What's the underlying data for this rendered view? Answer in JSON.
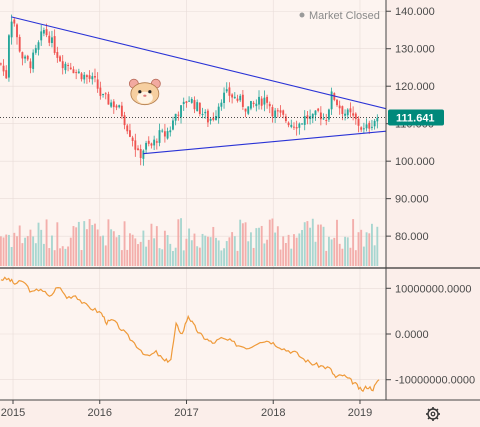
{
  "status": {
    "text": "Market Closed",
    "dot_color": "#9a9a9a"
  },
  "colors": {
    "up": "#26a69a",
    "down": "#ef5350",
    "trendline": "#2a33d6",
    "indicator": "#ef9a3a",
    "price_label_bg": "#00897b",
    "grid": "#e8dcd8"
  },
  "icons": {
    "mascot": "hamster-emoji",
    "settings": "gear-icon"
  },
  "chart_data": [
    {
      "type": "candlestick",
      "title": "",
      "x_ticks": [
        "2015",
        "2016",
        "2017",
        "2018",
        "2019"
      ],
      "x_tick_values": [
        2015.0,
        2016.0,
        2017.0,
        2018.0,
        2019.0
      ],
      "xlim": [
        2014.85,
        2019.3
      ],
      "y_ticks": [
        "140.000",
        "130.000",
        "120.000",
        "110.000",
        "100.000",
        "90.000",
        "80.000"
      ],
      "y_tick_values": [
        140,
        130,
        120,
        110,
        100,
        90,
        80
      ],
      "ylim": [
        71.5,
        143
      ],
      "last_price": 111.641,
      "last_price_label": "111.641",
      "series_close": [
        [
          2014.86,
          126
        ],
        [
          2014.92,
          122
        ],
        [
          2014.96,
          137
        ],
        [
          2015.0,
          139
        ],
        [
          2015.05,
          132
        ],
        [
          2015.12,
          127
        ],
        [
          2015.2,
          126
        ],
        [
          2015.28,
          130
        ],
        [
          2015.35,
          135
        ],
        [
          2015.42,
          133
        ],
        [
          2015.5,
          129
        ],
        [
          2015.58,
          126
        ],
        [
          2015.65,
          126
        ],
        [
          2015.72,
          124
        ],
        [
          2015.8,
          123
        ],
        [
          2015.88,
          122
        ],
        [
          2015.95,
          121
        ],
        [
          2016.02,
          117
        ],
        [
          2016.1,
          116
        ],
        [
          2016.18,
          115
        ],
        [
          2016.25,
          113
        ],
        [
          2016.32,
          109
        ],
        [
          2016.38,
          106
        ],
        [
          2016.45,
          101
        ],
        [
          2016.52,
          104
        ],
        [
          2016.6,
          104
        ],
        [
          2016.68,
          107
        ],
        [
          2016.75,
          107
        ],
        [
          2016.82,
          109
        ],
        [
          2016.88,
          113
        ],
        [
          2016.95,
          114
        ],
        [
          2017.02,
          117
        ],
        [
          2017.1,
          115
        ],
        [
          2017.18,
          113
        ],
        [
          2017.25,
          111
        ],
        [
          2017.32,
          112
        ],
        [
          2017.4,
          117
        ],
        [
          2017.48,
          118
        ],
        [
          2017.55,
          117
        ],
        [
          2017.62,
          116
        ],
        [
          2017.7,
          114
        ],
        [
          2017.78,
          115
        ],
        [
          2017.85,
          116
        ],
        [
          2017.92,
          117
        ],
        [
          2018.0,
          113
        ],
        [
          2018.08,
          112
        ],
        [
          2018.15,
          111
        ],
        [
          2018.22,
          110
        ],
        [
          2018.3,
          110
        ],
        [
          2018.38,
          112
        ],
        [
          2018.45,
          111
        ],
        [
          2018.52,
          113
        ],
        [
          2018.6,
          111
        ],
        [
          2018.68,
          118
        ],
        [
          2018.75,
          115
        ],
        [
          2018.82,
          113
        ],
        [
          2018.9,
          112
        ],
        [
          2018.98,
          110
        ],
        [
          2019.05,
          108
        ],
        [
          2019.12,
          110
        ],
        [
          2019.2,
          111.6
        ]
      ],
      "volume_max": 100,
      "trendlines": [
        {
          "name": "upper",
          "from": [
            2014.98,
            138.5
          ],
          "to": [
            2019.3,
            114
          ]
        },
        {
          "name": "lower",
          "from": [
            2016.5,
            102
          ],
          "to": [
            2019.3,
            108
          ]
        }
      ],
      "price_marker": "hamster-emoji",
      "price_marker_at": [
        2016.52,
        118
      ],
      "dotted_line_at": 111.641
    },
    {
      "type": "line",
      "title": "",
      "y_ticks": [
        "10000000.0000",
        "0.0000",
        "-10000000.0000"
      ],
      "y_tick_values": [
        10000000,
        0,
        -10000000
      ],
      "ylim": [
        -14000000,
        14000000
      ],
      "values": [
        [
          2014.86,
          12000000
        ],
        [
          2014.95,
          12000000
        ],
        [
          2015.02,
          11000000
        ],
        [
          2015.12,
          11500000
        ],
        [
          2015.22,
          9000000
        ],
        [
          2015.32,
          10000000
        ],
        [
          2015.42,
          8000000
        ],
        [
          2015.52,
          10500000
        ],
        [
          2015.62,
          8000000
        ],
        [
          2015.72,
          8500000
        ],
        [
          2015.82,
          6500000
        ],
        [
          2015.92,
          5500000
        ],
        [
          2016.02,
          4500000
        ],
        [
          2016.08,
          2500000
        ],
        [
          2016.15,
          3000000
        ],
        [
          2016.25,
          1000000
        ],
        [
          2016.35,
          -1000000
        ],
        [
          2016.45,
          -3000000
        ],
        [
          2016.55,
          -5000000
        ],
        [
          2016.65,
          -4000000
        ],
        [
          2016.75,
          -6000000
        ],
        [
          2016.82,
          -5500000
        ],
        [
          2016.88,
          2000000
        ],
        [
          2016.95,
          0
        ],
        [
          2017.02,
          4000000
        ],
        [
          2017.08,
          2000000
        ],
        [
          2017.15,
          0
        ],
        [
          2017.22,
          -1000000
        ],
        [
          2017.3,
          -2000000
        ],
        [
          2017.4,
          -1000000
        ],
        [
          2017.5,
          -1500000
        ],
        [
          2017.6,
          -2500000
        ],
        [
          2017.72,
          -3000000
        ],
        [
          2017.85,
          -1500000
        ],
        [
          2017.95,
          -1500000
        ],
        [
          2018.05,
          -2500000
        ],
        [
          2018.15,
          -3500000
        ],
        [
          2018.25,
          -4000000
        ],
        [
          2018.35,
          -5500000
        ],
        [
          2018.45,
          -6500000
        ],
        [
          2018.55,
          -7000000
        ],
        [
          2018.65,
          -7500000
        ],
        [
          2018.72,
          -9500000
        ],
        [
          2018.8,
          -9000000
        ],
        [
          2018.88,
          -10000000
        ],
        [
          2018.95,
          -11000000
        ],
        [
          2019.02,
          -12500000
        ],
        [
          2019.08,
          -11500000
        ],
        [
          2019.15,
          -12000000
        ],
        [
          2019.22,
          -10000000
        ]
      ]
    }
  ]
}
